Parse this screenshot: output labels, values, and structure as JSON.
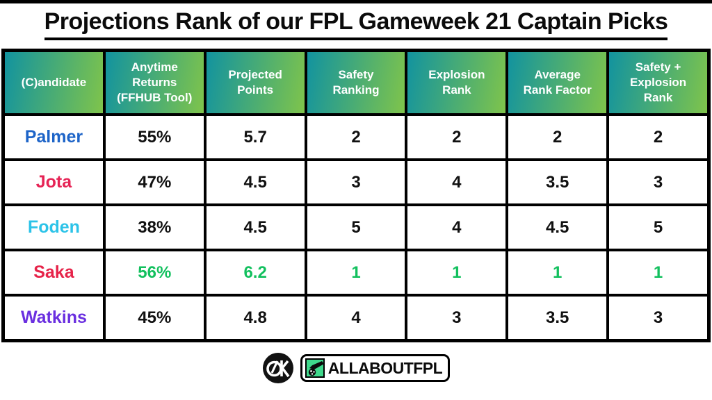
{
  "page": {
    "title": "Projections Rank of our FPL Gameweek 21 Captain Picks"
  },
  "colors": {
    "header_gradient_from": "#12939f",
    "header_gradient_to": "#7fc44b",
    "table_border": "#000000",
    "value_default": "#111111",
    "highlight_green": "#12c05e"
  },
  "table": {
    "headers_display": [
      "(C)andidate",
      "Anytime\nReturns\n(FFHUB Tool)",
      "Projected\nPoints",
      "Safety\nRanking",
      "Explosion\nRank",
      "Average\nRank Factor",
      "Safety +\nExplosion\nRank"
    ]
  },
  "chart_data": {
    "type": "table",
    "title": "Projections Rank of our FPL Gameweek 21 Captain Picks",
    "columns": [
      "(C)andidate",
      "Anytime Returns (FFHUB Tool)",
      "Projected Points",
      "Safety Ranking",
      "Explosion Rank",
      "Average Rank Factor",
      "Safety + Explosion Rank"
    ],
    "rows": [
      {
        "player": "Palmer",
        "player_color": "#1d64c8",
        "values": [
          "55%",
          "5.7",
          "2",
          "2",
          "2",
          "2"
        ],
        "value_color": "#111111"
      },
      {
        "player": "Jota",
        "player_color": "#e62355",
        "values": [
          "47%",
          "4.5",
          "3",
          "4",
          "3.5",
          "3"
        ],
        "value_color": "#111111"
      },
      {
        "player": "Foden",
        "player_color": "#2cc3e8",
        "values": [
          "38%",
          "4.5",
          "5",
          "4",
          "4.5",
          "5"
        ],
        "value_color": "#111111"
      },
      {
        "player": "Saka",
        "player_color": "#e62349",
        "values": [
          "56%",
          "6.2",
          "1",
          "1",
          "1",
          "1"
        ],
        "value_color": "#12c05e"
      },
      {
        "player": "Watkins",
        "player_color": "#6a2fe0",
        "values": [
          "45%",
          "4.8",
          "4",
          "3",
          "3.5",
          "3"
        ],
        "value_color": "#111111"
      }
    ]
  },
  "footer": {
    "monogram": "AK",
    "brand": "ALLABOUTFPL",
    "logo_green": "#3fd98c"
  }
}
